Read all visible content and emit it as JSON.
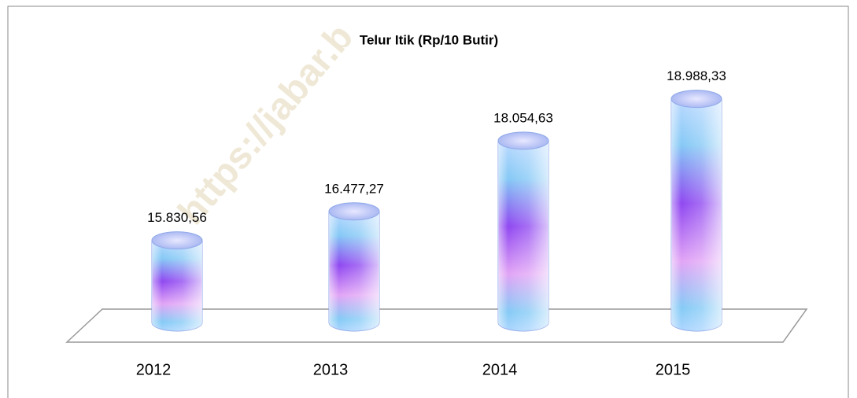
{
  "chart_data": {
    "type": "bar",
    "title": "Telur Itik (Rp/10 Butir)",
    "categories": [
      "2012",
      "2013",
      "2014",
      "2015"
    ],
    "values": [
      15830.56,
      16477.27,
      18054.63,
      18988.33
    ],
    "value_labels": [
      "15.830,56",
      "16.477,27",
      "18.054,63",
      "18.988,33"
    ],
    "ylim": [
      14000,
      20000
    ],
    "watermark": "https://jabar.b"
  }
}
